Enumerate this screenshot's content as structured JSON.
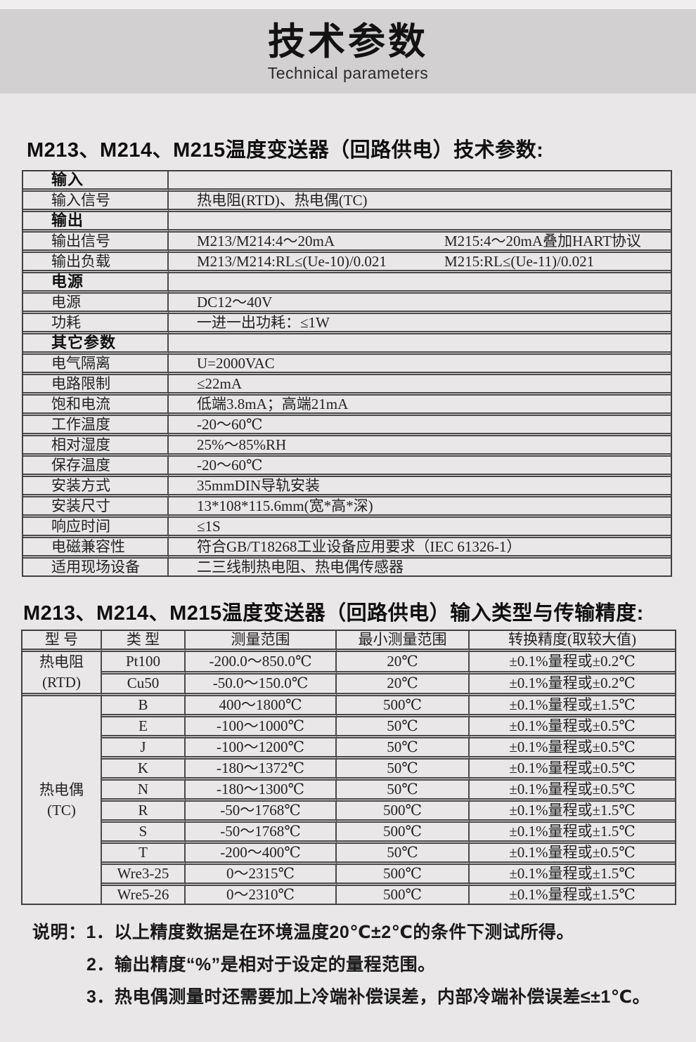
{
  "banner": {
    "title": "技术参数",
    "subtitle": "Technical parameters"
  },
  "colors": {
    "page_bg": "#e9e7e7",
    "top_strip_bg": "#f0eeee",
    "banner_bg": "#d2d0d0",
    "table_border": "#4a4a4a",
    "text": "#1c1c1c"
  },
  "section1": {
    "heading": "M213、M214、M215温度变送器（回路供电）技术参数:",
    "table": {
      "rows": [
        {
          "type": "section",
          "label": "输入"
        },
        {
          "type": "data",
          "label": "输入信号",
          "value": "热电阻(RTD)、热电偶(TC)"
        },
        {
          "type": "section",
          "label": "输出"
        },
        {
          "type": "data",
          "label": "输出信号",
          "value": "M213/M214:4～20mA",
          "value2": "M215:4～20mA叠加HART协议"
        },
        {
          "type": "data",
          "label": "输出负载",
          "value": "M213/M214:RL≤(Ue-10)/0.021",
          "value2": "M215:RL≤(Ue-11)/0.021"
        },
        {
          "type": "section",
          "label": "电源"
        },
        {
          "type": "data",
          "label": "电源",
          "value": "DC12～40V"
        },
        {
          "type": "data",
          "label": "功耗",
          "value": "一进一出功耗：≤1W"
        },
        {
          "type": "section",
          "label": "其它参数"
        },
        {
          "type": "data",
          "label": "电气隔离",
          "value": "U=2000VAC"
        },
        {
          "type": "data",
          "label": "电路限制",
          "value": "≤22mA"
        },
        {
          "type": "data",
          "label": "饱和电流",
          "value": "低端3.8mA；高端21mA"
        },
        {
          "type": "data",
          "label": "工作温度",
          "value": "-20～60℃"
        },
        {
          "type": "data",
          "label": "相对湿度",
          "value": "25%～85%RH"
        },
        {
          "type": "data",
          "label": "保存温度",
          "value": "-20～60℃"
        },
        {
          "type": "data",
          "label": "安装方式",
          "value": "35mmDIN导轨安装"
        },
        {
          "type": "data",
          "label": "安装尺寸",
          "value": "13*108*115.6mm(宽*高*深)"
        },
        {
          "type": "data",
          "label": "响应时间",
          "value": "≤1S"
        },
        {
          "type": "data",
          "label": "电磁兼容性",
          "value": "符合GB/T18268工业设备应用要求（IEC 61326-1）"
        },
        {
          "type": "data",
          "label": "适用现场设备",
          "value": "二三线制热电阻、热电偶传感器"
        }
      ]
    }
  },
  "section2": {
    "heading": "M213、M214、M215温度变送器（回路供电）输入类型与传输精度:",
    "table": {
      "headers": [
        "型 号",
        "类 型",
        "测量范围",
        "最小测量范围",
        "转换精度(取较大值)"
      ],
      "groups": [
        {
          "model": "热电阻",
          "model_sub": "(RTD)",
          "rows": [
            [
              "Pt100",
              "-200.0～850.0℃",
              "20℃",
              "±0.1%量程或±0.2℃"
            ],
            [
              "Cu50",
              "-50.0～150.0℃",
              "20℃",
              "±0.1%量程或±0.2℃"
            ]
          ]
        },
        {
          "model": "热电偶",
          "model_sub": "(TC)",
          "rows": [
            [
              "B",
              "400～1800℃",
              "500℃",
              "±0.1%量程或±1.5℃"
            ],
            [
              "E",
              "-100～1000℃",
              "50℃",
              "±0.1%量程或±0.5℃"
            ],
            [
              "J",
              "-100～1200℃",
              "50℃",
              "±0.1%量程或±0.5℃"
            ],
            [
              "K",
              "-180～1372℃",
              "50℃",
              "±0.1%量程或±0.5℃"
            ],
            [
              "N",
              "-180～1300℃",
              "50℃",
              "±0.1%量程或±0.5℃"
            ],
            [
              "R",
              "-50～1768℃",
              "500℃",
              "±0.1%量程或±1.5℃"
            ],
            [
              "S",
              "-50～1768℃",
              "500℃",
              "±0.1%量程或±1.5℃"
            ],
            [
              "T",
              "-200～400℃",
              "50℃",
              "±0.1%量程或±0.5℃"
            ],
            [
              "Wre3-25",
              "0～2315℃",
              "500℃",
              "±0.1%量程或±1.5℃"
            ],
            [
              "Wre5-26",
              "0～2310℃",
              "500℃",
              "±0.1%量程或±1.5℃"
            ]
          ]
        }
      ]
    }
  },
  "notes": {
    "prefix": "说明：",
    "items": [
      "1．以上精度数据是在环境温度20℃±2℃的条件下测试所得。",
      "2．输出精度“%”是相对于设定的量程范围。",
      "3．热电偶测量时还需要加上冷端补偿误差，内部冷端补偿误差≤±1℃。"
    ]
  }
}
